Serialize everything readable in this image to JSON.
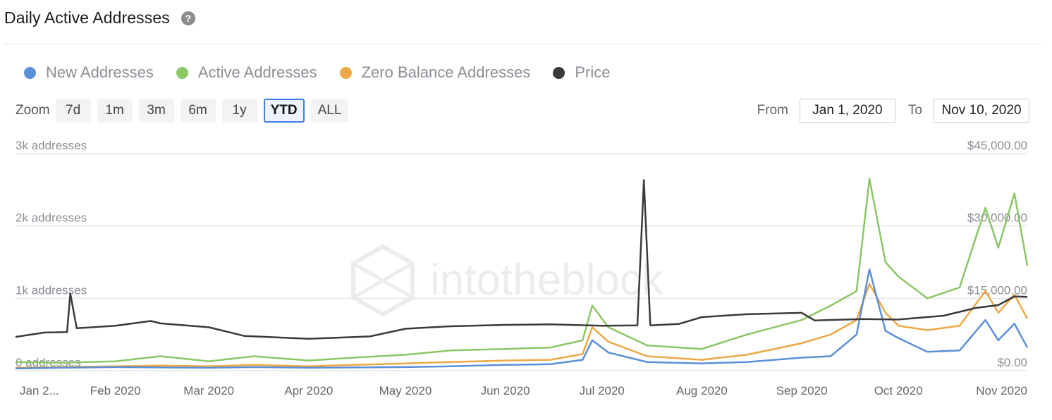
{
  "header": {
    "title": "Daily Active Addresses",
    "help_icon": "question-circle-icon"
  },
  "legend": [
    {
      "label": "New Addresses",
      "color": "#5b8fd8"
    },
    {
      "label": "Active Addresses",
      "color": "#8cc665"
    },
    {
      "label": "Zero Balance Addresses",
      "color": "#eca845"
    },
    {
      "label": "Price",
      "color": "#3a3a3a"
    }
  ],
  "zoom": {
    "label": "Zoom",
    "buttons": [
      "7d",
      "1m",
      "3m",
      "6m",
      "1y",
      "YTD",
      "ALL"
    ],
    "active": "YTD"
  },
  "range": {
    "from_label": "From",
    "from_value": "Jan 1, 2020",
    "to_label": "To",
    "to_value": "Nov 10, 2020"
  },
  "watermark": "intotheblock",
  "chart_data": {
    "type": "line",
    "x_tick_labels": [
      "Jan 2...",
      "Feb 2020",
      "Mar 2020",
      "Apr 2020",
      "May 2020",
      "Jun 2020",
      "Jul 2020",
      "Aug 2020",
      "Sep 2020",
      "Oct 2020",
      "Nov 2020"
    ],
    "x_tick_dates": [
      "2020-01-02",
      "2020-02-01",
      "2020-03-01",
      "2020-04-01",
      "2020-05-01",
      "2020-06-01",
      "2020-07-01",
      "2020-08-01",
      "2020-09-01",
      "2020-10-01",
      "2020-11-01"
    ],
    "x_range": [
      "2020-01-01",
      "2020-11-10"
    ],
    "y_left": {
      "ticks": [
        0,
        1000,
        2000,
        3000
      ],
      "tick_labels": [
        "0 addresses",
        "1k addresses",
        "2k addresses",
        "3k addresses"
      ],
      "range": [
        0,
        3000
      ]
    },
    "y_right": {
      "ticks": [
        0,
        15000,
        30000,
        45000
      ],
      "tick_labels": [
        "$0.00",
        "$15,000.00",
        "$30,000.00",
        "$45,000.00"
      ],
      "range": [
        0,
        45000
      ]
    },
    "grid": true,
    "series": [
      {
        "name": "New Addresses",
        "axis": "left",
        "color": "#5b8fd8",
        "points": [
          [
            "2020-01-01",
            30
          ],
          [
            "2020-01-15",
            40
          ],
          [
            "2020-02-01",
            50
          ],
          [
            "2020-02-15",
            45
          ],
          [
            "2020-03-01",
            40
          ],
          [
            "2020-03-15",
            50
          ],
          [
            "2020-04-01",
            40
          ],
          [
            "2020-04-15",
            45
          ],
          [
            "2020-05-01",
            50
          ],
          [
            "2020-05-15",
            60
          ],
          [
            "2020-06-01",
            80
          ],
          [
            "2020-06-15",
            90
          ],
          [
            "2020-06-25",
            150
          ],
          [
            "2020-06-28",
            420
          ],
          [
            "2020-07-03",
            250
          ],
          [
            "2020-07-15",
            120
          ],
          [
            "2020-08-01",
            100
          ],
          [
            "2020-08-15",
            120
          ],
          [
            "2020-09-01",
            180
          ],
          [
            "2020-09-10",
            200
          ],
          [
            "2020-09-18",
            500
          ],
          [
            "2020-09-22",
            1400
          ],
          [
            "2020-09-27",
            550
          ],
          [
            "2020-10-01",
            450
          ],
          [
            "2020-10-10",
            260
          ],
          [
            "2020-10-20",
            280
          ],
          [
            "2020-10-28",
            700
          ],
          [
            "2020-11-01",
            420
          ],
          [
            "2020-11-06",
            650
          ],
          [
            "2020-11-10",
            320
          ]
        ]
      },
      {
        "name": "Active Addresses",
        "axis": "left",
        "color": "#8cc665",
        "points": [
          [
            "2020-01-01",
            120
          ],
          [
            "2020-01-15",
            110
          ],
          [
            "2020-02-01",
            130
          ],
          [
            "2020-02-15",
            200
          ],
          [
            "2020-03-01",
            130
          ],
          [
            "2020-03-15",
            200
          ],
          [
            "2020-04-01",
            140
          ],
          [
            "2020-04-15",
            180
          ],
          [
            "2020-05-01",
            220
          ],
          [
            "2020-05-15",
            280
          ],
          [
            "2020-06-01",
            300
          ],
          [
            "2020-06-15",
            320
          ],
          [
            "2020-06-25",
            420
          ],
          [
            "2020-06-28",
            900
          ],
          [
            "2020-07-03",
            600
          ],
          [
            "2020-07-15",
            350
          ],
          [
            "2020-08-01",
            300
          ],
          [
            "2020-08-15",
            500
          ],
          [
            "2020-09-01",
            700
          ],
          [
            "2020-09-10",
            900
          ],
          [
            "2020-09-18",
            1100
          ],
          [
            "2020-09-22",
            2650
          ],
          [
            "2020-09-27",
            1500
          ],
          [
            "2020-10-01",
            1300
          ],
          [
            "2020-10-10",
            1000
          ],
          [
            "2020-10-20",
            1150
          ],
          [
            "2020-10-28",
            2250
          ],
          [
            "2020-11-01",
            1700
          ],
          [
            "2020-11-06",
            2450
          ],
          [
            "2020-11-10",
            1450
          ]
        ]
      },
      {
        "name": "Zero Balance Addresses",
        "axis": "left",
        "color": "#eca845",
        "points": [
          [
            "2020-01-01",
            40
          ],
          [
            "2020-01-15",
            50
          ],
          [
            "2020-02-01",
            60
          ],
          [
            "2020-02-15",
            70
          ],
          [
            "2020-03-01",
            60
          ],
          [
            "2020-03-15",
            80
          ],
          [
            "2020-04-01",
            60
          ],
          [
            "2020-04-15",
            80
          ],
          [
            "2020-05-01",
            100
          ],
          [
            "2020-05-15",
            120
          ],
          [
            "2020-06-01",
            140
          ],
          [
            "2020-06-15",
            150
          ],
          [
            "2020-06-25",
            230
          ],
          [
            "2020-06-28",
            600
          ],
          [
            "2020-07-03",
            400
          ],
          [
            "2020-07-15",
            200
          ],
          [
            "2020-08-01",
            150
          ],
          [
            "2020-08-15",
            220
          ],
          [
            "2020-09-01",
            380
          ],
          [
            "2020-09-10",
            500
          ],
          [
            "2020-09-18",
            700
          ],
          [
            "2020-09-22",
            1200
          ],
          [
            "2020-09-27",
            800
          ],
          [
            "2020-10-01",
            620
          ],
          [
            "2020-10-10",
            560
          ],
          [
            "2020-10-20",
            620
          ],
          [
            "2020-10-28",
            1100
          ],
          [
            "2020-11-01",
            800
          ],
          [
            "2020-11-06",
            1050
          ],
          [
            "2020-11-10",
            720
          ]
        ]
      },
      {
        "name": "Price",
        "axis": "right",
        "color": "#3a3a3a",
        "points": [
          [
            "2020-01-01",
            7000
          ],
          [
            "2020-01-10",
            7900
          ],
          [
            "2020-01-17",
            8000
          ],
          [
            "2020-01-18",
            16000
          ],
          [
            "2020-01-20",
            8800
          ],
          [
            "2020-02-01",
            9300
          ],
          [
            "2020-02-12",
            10300
          ],
          [
            "2020-02-15",
            9800
          ],
          [
            "2020-03-01",
            9000
          ],
          [
            "2020-03-12",
            7200
          ],
          [
            "2020-04-01",
            6600
          ],
          [
            "2020-04-20",
            7100
          ],
          [
            "2020-05-01",
            8700
          ],
          [
            "2020-05-15",
            9200
          ],
          [
            "2020-06-01",
            9500
          ],
          [
            "2020-06-15",
            9600
          ],
          [
            "2020-07-01",
            9300
          ],
          [
            "2020-07-12",
            9400
          ],
          [
            "2020-07-14",
            39500
          ],
          [
            "2020-07-16",
            9400
          ],
          [
            "2020-07-25",
            9700
          ],
          [
            "2020-08-01",
            11100
          ],
          [
            "2020-08-15",
            11700
          ],
          [
            "2020-09-01",
            12000
          ],
          [
            "2020-09-05",
            10400
          ],
          [
            "2020-09-20",
            10700
          ],
          [
            "2020-10-01",
            10600
          ],
          [
            "2020-10-15",
            11400
          ],
          [
            "2020-10-25",
            13000
          ],
          [
            "2020-11-01",
            13600
          ],
          [
            "2020-11-06",
            15400
          ],
          [
            "2020-11-10",
            15300
          ]
        ]
      }
    ]
  }
}
